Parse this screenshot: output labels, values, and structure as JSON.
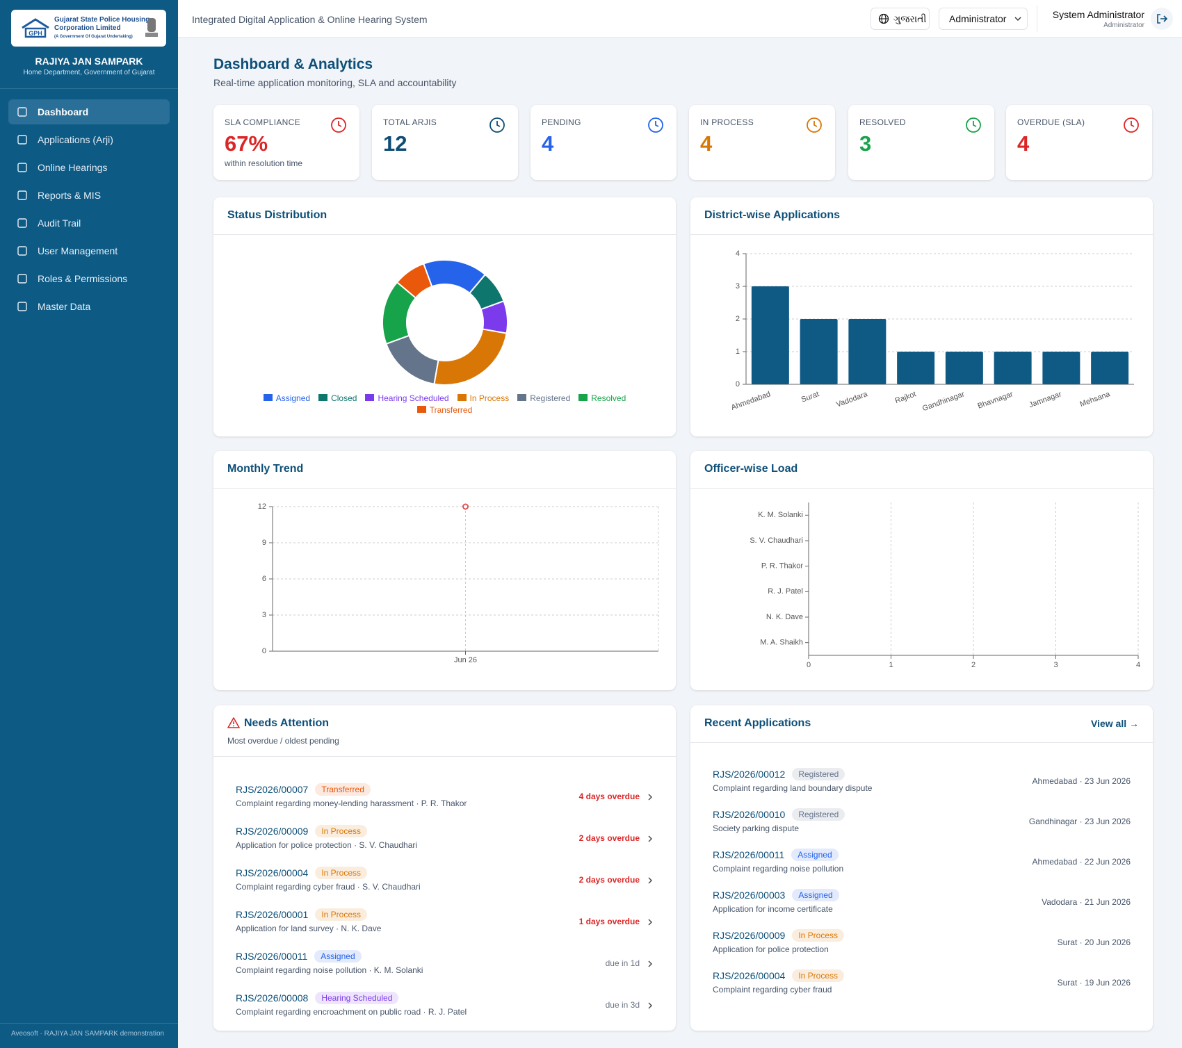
{
  "sidebar": {
    "org_line1": "Gujarat State Police Housing",
    "org_line2": "Corporation Limited",
    "org_line3": "(A Government Of Gujarat Undertaking)",
    "app_name": "RAJIYA JAN SAMPARK",
    "app_subtitle": "Home Department, Government of Gujarat",
    "nav": [
      "Dashboard",
      "Applications (Arji)",
      "Online Hearings",
      "Reports & MIS",
      "Audit Trail",
      "User Management",
      "Roles & Permissions",
      "Master Data"
    ],
    "footer": "Aveosoft · RAJIYA JAN SAMPARK demonstration"
  },
  "header": {
    "system_title": "Integrated Digital Application & Online Hearing System",
    "language": "ગુજરાતી",
    "role_select": "Administrator",
    "user_name": "System Administrator",
    "user_role": "Administrator"
  },
  "page": {
    "title": "Dashboard & Analytics",
    "subtitle": "Real-time application monitoring, SLA and accountability"
  },
  "kpis": [
    {
      "label": "SLA COMPLIANCE",
      "value": "67%",
      "note": "within resolution time",
      "color": "#dc2626"
    },
    {
      "label": "TOTAL ARJIS",
      "value": "12",
      "color": "#0f4c75"
    },
    {
      "label": "PENDING",
      "value": "4",
      "color": "#2563eb"
    },
    {
      "label": "IN PROCESS",
      "value": "4",
      "color": "#d97706"
    },
    {
      "label": "RESOLVED",
      "value": "3",
      "color": "#16a34a"
    },
    {
      "label": "OVERDUE (SLA)",
      "value": "4",
      "color": "#dc2626"
    }
  ],
  "chart_data": [
    {
      "type": "pie",
      "title": "Status Distribution",
      "categories": [
        "Assigned",
        "Closed",
        "Hearing Scheduled",
        "In Process",
        "Registered",
        "Resolved",
        "Transferred"
      ],
      "values": [
        2,
        1,
        1,
        3,
        2,
        2,
        1
      ],
      "colors": [
        "#2563eb",
        "#0f766e",
        "#7c3aed",
        "#d97706",
        "#64748b",
        "#16a34a",
        "#ea580c"
      ]
    },
    {
      "type": "bar",
      "title": "District-wise Applications",
      "categories": [
        "Ahmedabad",
        "Surat",
        "Vadodara",
        "Rajkot",
        "Gandhinagar",
        "Bhavnagar",
        "Jamnagar",
        "Mehsana"
      ],
      "values": [
        3,
        2,
        2,
        1,
        1,
        1,
        1,
        1
      ],
      "color": "#0f5a85",
      "ylim": [
        0,
        4
      ],
      "yticks": [
        0,
        1,
        2,
        3,
        4
      ],
      "grid": true
    },
    {
      "type": "line",
      "title": "Monthly Trend",
      "x": [
        "Jun 26"
      ],
      "values": [
        12
      ],
      "color": "#e05252",
      "ylim": [
        0,
        12
      ],
      "yticks": [
        0,
        3,
        6,
        9,
        12
      ],
      "grid": true
    },
    {
      "type": "hbar",
      "title": "Officer-wise Load",
      "categories": [
        "K. M. Solanki",
        "S. V. Chaudhari",
        "P. R. Thakor",
        "R. J. Patel",
        "N. K. Dave",
        "M. A. Shaikh"
      ],
      "xlim": [
        0,
        4
      ],
      "xticks": [
        0,
        1,
        2,
        3,
        4
      ],
      "grid": true
    }
  ],
  "needs_attention": {
    "title": "Needs Attention",
    "subtitle": "Most overdue / oldest pending",
    "items": [
      {
        "id": "RJS/2026/00007",
        "status": "Transferred",
        "desc": "Complaint regarding money-lending harassment · P. R. Thakor",
        "due": "4 days overdue",
        "due_color": "#dc2626"
      },
      {
        "id": "RJS/2026/00009",
        "status": "In Process",
        "desc": "Application for police protection · S. V. Chaudhari",
        "due": "2 days overdue",
        "due_color": "#dc2626"
      },
      {
        "id": "RJS/2026/00004",
        "status": "In Process",
        "desc": "Complaint regarding cyber fraud · S. V. Chaudhari",
        "due": "2 days overdue",
        "due_color": "#dc2626"
      },
      {
        "id": "RJS/2026/00001",
        "status": "In Process",
        "desc": "Application for land survey · N. K. Dave",
        "due": "1 days overdue",
        "due_color": "#dc2626"
      },
      {
        "id": "RJS/2026/00011",
        "status": "Assigned",
        "desc": "Complaint regarding noise pollution · K. M. Solanki",
        "due": "due in 1d",
        "due_color": "#6b7280"
      },
      {
        "id": "RJS/2026/00008",
        "status": "Hearing Scheduled",
        "desc": "Complaint regarding encroachment on public road · R. J. Patel",
        "due": "due in 3d",
        "due_color": "#6b7280"
      }
    ]
  },
  "recent_applications": {
    "title": "Recent Applications",
    "link": "View all →",
    "items": [
      {
        "id": "RJS/2026/00012",
        "status": "Registered",
        "desc": "Complaint regarding land boundary dispute",
        "meta": "Ahmedabad · 23 Jun 2026"
      },
      {
        "id": "RJS/2026/00010",
        "status": "Registered",
        "desc": "Society parking dispute",
        "meta": "Gandhinagar · 23 Jun 2026"
      },
      {
        "id": "RJS/2026/00011",
        "status": "Assigned",
        "desc": "Complaint regarding noise pollution",
        "meta": "Ahmedabad · 22 Jun 2026"
      },
      {
        "id": "RJS/2026/00003",
        "status": "Assigned",
        "desc": "Application for income certificate",
        "meta": "Vadodara · 21 Jun 2026"
      },
      {
        "id": "RJS/2026/00009",
        "status": "In Process",
        "desc": "Application for police protection",
        "meta": "Surat · 20 Jun 2026"
      },
      {
        "id": "RJS/2026/00004",
        "status": "In Process",
        "desc": "Complaint regarding cyber fraud",
        "meta": "Surat · 19 Jun 2026"
      }
    ]
  }
}
